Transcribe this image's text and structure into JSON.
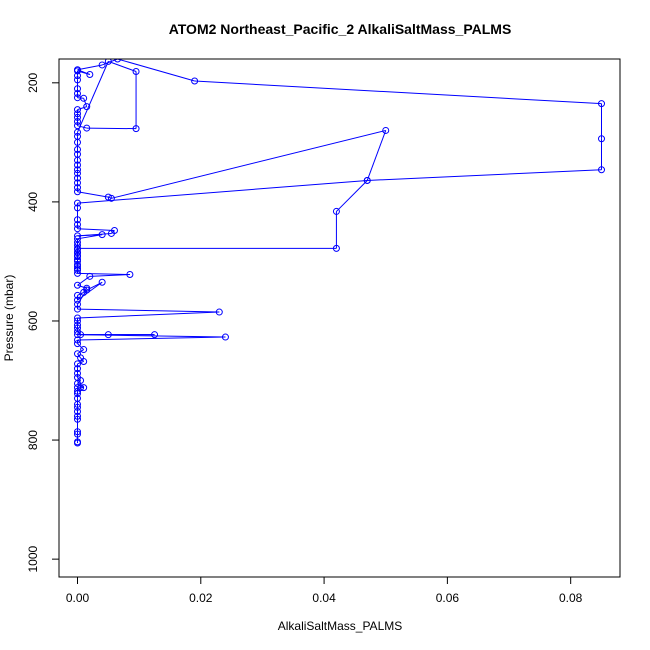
{
  "chart_data": {
    "type": "line",
    "title": "ATOM2 Northeast_Pacific_2 AlkaliSaltMass_PALMS",
    "xlabel": "AlkaliSaltMass_PALMS",
    "ylabel": "Pressure (mbar)",
    "xlim": [
      -0.003,
      0.088
    ],
    "ylim": [
      1030,
      160
    ],
    "y_reversed": true,
    "x_ticks": [
      0.0,
      0.02,
      0.04,
      0.06,
      0.08
    ],
    "x_tick_labels": [
      "0.00",
      "0.02",
      "0.04",
      "0.06",
      "0.08"
    ],
    "y_ticks": [
      200,
      400,
      600,
      800,
      1000
    ],
    "y_tick_labels": [
      "200",
      "400",
      "600",
      "800",
      "1000"
    ],
    "grid": false,
    "color": "#0000ff",
    "marker": "open-circle",
    "series": [
      {
        "name": "",
        "points": [
          [
            0.0,
            805
          ],
          [
            0.0,
            803
          ],
          [
            0.0,
            790
          ],
          [
            0.0,
            786
          ],
          [
            0.0,
            765
          ],
          [
            0.0,
            760
          ],
          [
            0.0,
            752
          ],
          [
            0.0,
            745
          ],
          [
            0.0,
            740
          ],
          [
            0.0,
            730
          ],
          [
            0.0,
            722
          ],
          [
            0.0,
            718
          ],
          [
            0.0,
            712
          ],
          [
            0.0005,
            712
          ],
          [
            0.001,
            712
          ],
          [
            0.0,
            705
          ],
          [
            0.0005,
            700
          ],
          [
            0.0,
            695
          ],
          [
            0.0,
            688
          ],
          [
            0.0,
            680
          ],
          [
            0.0,
            672
          ],
          [
            0.001,
            668
          ],
          [
            0.0005,
            662
          ],
          [
            0.0,
            655
          ],
          [
            0.001,
            648
          ],
          [
            0.0,
            638
          ],
          [
            0.0,
            632
          ],
          [
            0.024,
            627
          ],
          [
            0.0,
            623
          ],
          [
            0.005,
            623
          ],
          [
            0.0125,
            623
          ],
          [
            0.0005,
            623
          ],
          [
            0.0,
            618
          ],
          [
            0.0,
            612
          ],
          [
            0.0,
            607
          ],
          [
            0.0,
            600
          ],
          [
            0.0,
            595
          ],
          [
            0.023,
            585
          ],
          [
            0.0,
            580
          ],
          [
            0.0,
            572
          ],
          [
            0.0015,
            548
          ],
          [
            0.004,
            535
          ],
          [
            0.0,
            565
          ],
          [
            0.0,
            557
          ],
          [
            0.001,
            552
          ],
          [
            0.0015,
            545
          ],
          [
            0.0,
            540
          ],
          [
            0.002,
            525
          ],
          [
            0.0085,
            522
          ],
          [
            0.0,
            520
          ],
          [
            0.0,
            512
          ],
          [
            0.0,
            505
          ],
          [
            0.0,
            497
          ],
          [
            0.0,
            490
          ],
          [
            0.0,
            485
          ],
          [
            0.0,
            478
          ],
          [
            0.042,
            478
          ],
          [
            0.042,
            416
          ],
          [
            0.047,
            364
          ],
          [
            0.085,
            346
          ],
          [
            0.085,
            294
          ],
          [
            0.085,
            235
          ],
          [
            0.019,
            197
          ],
          [
            0.0065,
            160
          ],
          [
            0.004,
            170
          ],
          [
            0.0,
            178
          ],
          [
            0.002,
            186
          ],
          [
            0.0,
            180
          ],
          [
            0.0,
            188
          ],
          [
            0.0,
            195
          ],
          [
            0.0,
            210
          ],
          [
            0.0,
            218
          ],
          [
            0.0,
            225
          ],
          [
            0.001,
            226
          ],
          [
            0.0015,
            240
          ],
          [
            0.0,
            245
          ],
          [
            0.0,
            252
          ],
          [
            0.0,
            258
          ],
          [
            0.0,
            265
          ],
          [
            0.0,
            272
          ],
          [
            0.0015,
            276
          ],
          [
            0.0095,
            277
          ],
          [
            0.0095,
            181
          ],
          [
            0.005,
            164
          ],
          [
            0.0,
            283
          ],
          [
            0.0,
            290
          ],
          [
            0.0,
            300
          ],
          [
            0.0,
            312
          ],
          [
            0.0,
            320
          ],
          [
            0.0,
            330
          ],
          [
            0.0,
            338
          ],
          [
            0.0,
            346
          ],
          [
            0.0,
            352
          ],
          [
            0.0,
            360
          ],
          [
            0.0,
            368
          ],
          [
            0.0,
            376
          ],
          [
            0.0,
            383
          ],
          [
            0.005,
            392
          ],
          [
            0.0055,
            394
          ],
          [
            0.05,
            280
          ],
          [
            0.047,
            364
          ],
          [
            0.0,
            402
          ],
          [
            0.0,
            410
          ],
          [
            0.0,
            430
          ],
          [
            0.0,
            438
          ],
          [
            0.0,
            445
          ],
          [
            0.006,
            448
          ],
          [
            0.0055,
            453
          ],
          [
            0.0,
            457
          ],
          [
            0.004,
            455
          ],
          [
            0.0,
            462
          ],
          [
            0.0,
            468
          ],
          [
            0.0,
            473
          ],
          [
            0.0,
            480
          ],
          [
            0.0,
            485
          ],
          [
            0.0,
            492
          ],
          [
            0.0,
            500
          ],
          [
            0.0,
            508
          ],
          [
            0.0,
            515
          ]
        ]
      }
    ]
  }
}
